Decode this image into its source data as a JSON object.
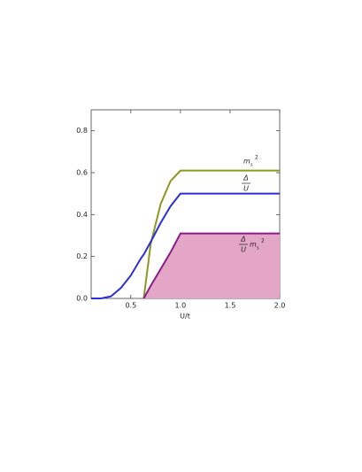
{
  "chart_data": {
    "type": "line",
    "xlabel": "U/t",
    "x": [
      0.1,
      0.2,
      0.3,
      0.4,
      0.5,
      0.6,
      0.63,
      0.7,
      0.8,
      0.9,
      1.0,
      1.5,
      2.0
    ],
    "series": [
      {
        "color": "#8a9a1e",
        "values": [
          null,
          null,
          null,
          null,
          null,
          null,
          0,
          0.26,
          0.45,
          0.56,
          0.61,
          0.61,
          0.61
        ]
      },
      {
        "color": "#2b2fd6",
        "values": [
          0,
          0,
          0.01,
          0.05,
          0.11,
          0.19,
          0.21,
          0.27,
          0.36,
          0.44,
          0.5,
          0.5,
          0.5
        ]
      },
      {
        "color": "#8b1a8b",
        "fill": "#e3a6c6",
        "values": [
          null,
          null,
          null,
          null,
          null,
          null,
          0,
          0.06,
          0.14,
          0.22,
          0.31,
          0.31,
          0.31
        ]
      }
    ],
    "annotations": [
      {
        "text": "m",
        "sub": "s",
        "sup": "2"
      },
      {
        "num": "Δ",
        "den": "U"
      },
      {
        "num": "Δ",
        "den": "U",
        "text": "m",
        "sub": "s",
        "sup": "2"
      }
    ],
    "xlim": [
      0.1,
      2.0
    ],
    "ylim": [
      0,
      0.9
    ],
    "xticks": [
      0.5,
      {
        "value": 1,
        "label": "1.0"
      },
      1.5,
      {
        "value": 2,
        "label": "2.0"
      }
    ],
    "yticks": [
      {
        "value": 0,
        "label": "0.0"
      },
      0.2,
      0.4,
      0.6,
      0.8
    ]
  }
}
